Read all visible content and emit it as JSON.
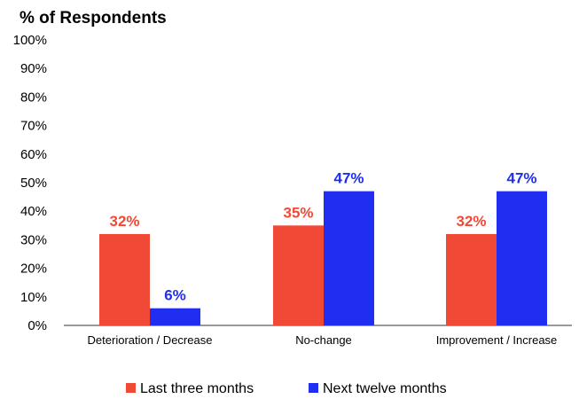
{
  "chart_data": {
    "type": "bar",
    "title": "",
    "ylabel": "% of Respondents",
    "xlabel": "",
    "categories": [
      "Deterioration / Decrease",
      "No-change",
      "Improvement / Increase"
    ],
    "series": [
      {
        "name": "Last three months",
        "values": [
          32,
          35,
          32
        ],
        "labels": [
          "32%",
          "35%",
          "32%"
        ],
        "color": "#f04a37"
      },
      {
        "name": "Next twelve months",
        "values": [
          6,
          47,
          47
        ],
        "labels": [
          "6%",
          "47%",
          "47%"
        ],
        "color": "#1f2ef0"
      }
    ],
    "ylim": [
      0,
      100
    ],
    "yticks": [
      "0%",
      "10%",
      "20%",
      "30%",
      "40%",
      "50%",
      "60%",
      "70%",
      "80%",
      "90%",
      "100%"
    ],
    "grid": false,
    "legend_position": "bottom"
  }
}
